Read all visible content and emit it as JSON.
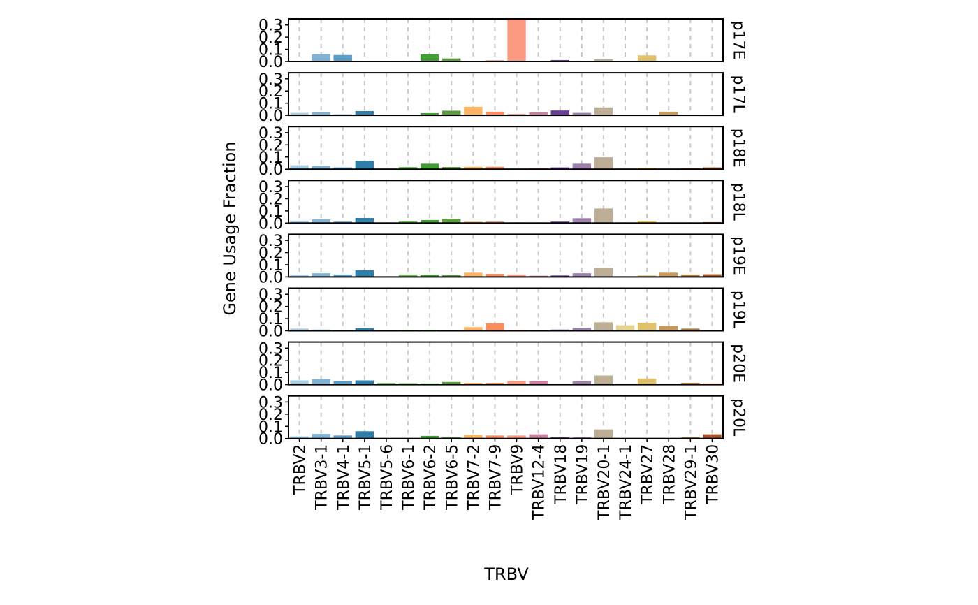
{
  "chart_data": {
    "type": "bar",
    "xlabel": "TRBV",
    "ylabel": "Gene Usage Fraction",
    "ylim": [
      0,
      0.35
    ],
    "yticks": [
      "0.0",
      "0.1",
      "0.2",
      "0.3"
    ],
    "grid": "vertical dashed at each category",
    "facet_layout": "rows, shared x axis, strip labels on right (rotated)",
    "categories": [
      "TRBV2",
      "TRBV3-1",
      "TRBV4-1",
      "TRBV5-1",
      "TRBV5-6",
      "TRBV6-1",
      "TRBV6-2",
      "TRBV6-5",
      "TRBV7-2",
      "TRBV7-9",
      "TRBV9",
      "TRBV12-4",
      "TRBV18",
      "TRBV19",
      "TRBV20-1",
      "TRBV24-1",
      "TRBV27",
      "TRBV28",
      "TRBV29-1",
      "TRBV30"
    ],
    "colors": [
      "#a6cee3",
      "#7fb3d5",
      "#5a9ec8",
      "#2f7fa8",
      "#8ac77b",
      "#6db559",
      "#3f9e34",
      "#5d9c3a",
      "#fdb462",
      "#fb8c5c",
      "#fb9a80",
      "#cc7fa0",
      "#6a3d9a",
      "#9c7fab",
      "#bfae96",
      "#e6d491",
      "#e0c068",
      "#c89a5a",
      "#b07a3a",
      "#a65628"
    ],
    "panels": [
      {
        "name": "p17E",
        "values": [
          0.005,
          0.058,
          0.053,
          0.002,
          0.002,
          0.002,
          0.058,
          0.025,
          0.005,
          0.01,
          0.35,
          0.003,
          0.012,
          0.003,
          0.018,
          0.003,
          0.05,
          0.003,
          0.003,
          0.003
        ]
      },
      {
        "name": "p17L",
        "values": [
          0.02,
          0.025,
          0.008,
          0.035,
          0.003,
          0.003,
          0.018,
          0.038,
          0.07,
          0.03,
          0.012,
          0.025,
          0.04,
          0.02,
          0.065,
          0.003,
          0.003,
          0.03,
          0.003,
          0.005
        ]
      },
      {
        "name": "p18E",
        "values": [
          0.032,
          0.025,
          0.015,
          0.068,
          0.003,
          0.018,
          0.045,
          0.018,
          0.02,
          0.02,
          0.003,
          0.008,
          0.015,
          0.045,
          0.098,
          0.003,
          0.012,
          0.003,
          0.008,
          0.015
        ]
      },
      {
        "name": "p18L",
        "values": [
          0.02,
          0.03,
          0.012,
          0.042,
          0.003,
          0.018,
          0.025,
          0.035,
          0.012,
          0.012,
          0.005,
          0.003,
          0.012,
          0.04,
          0.12,
          0.003,
          0.018,
          0.003,
          0.003,
          0.008
        ]
      },
      {
        "name": "p19E",
        "values": [
          0.018,
          0.03,
          0.02,
          0.055,
          0.003,
          0.02,
          0.018,
          0.015,
          0.035,
          0.025,
          0.02,
          0.01,
          0.012,
          0.03,
          0.075,
          0.003,
          0.012,
          0.035,
          0.02,
          0.022
        ]
      },
      {
        "name": "p19L",
        "values": [
          0.018,
          0.01,
          0.005,
          0.022,
          0.003,
          0.008,
          0.008,
          0.005,
          0.03,
          0.062,
          0.008,
          0.003,
          0.01,
          0.025,
          0.07,
          0.045,
          0.065,
          0.04,
          0.018,
          0.005
        ]
      },
      {
        "name": "p20E",
        "values": [
          0.035,
          0.045,
          0.028,
          0.035,
          0.015,
          0.012,
          0.01,
          0.022,
          0.015,
          0.015,
          0.03,
          0.03,
          0.003,
          0.03,
          0.075,
          0.003,
          0.05,
          0.003,
          0.015,
          0.01
        ]
      },
      {
        "name": "p20L",
        "values": [
          0.018,
          0.038,
          0.025,
          0.06,
          0.003,
          0.003,
          0.022,
          0.01,
          0.03,
          0.025,
          0.025,
          0.035,
          0.01,
          0.012,
          0.075,
          0.003,
          0.003,
          0.003,
          0.01,
          0.035
        ]
      }
    ]
  }
}
